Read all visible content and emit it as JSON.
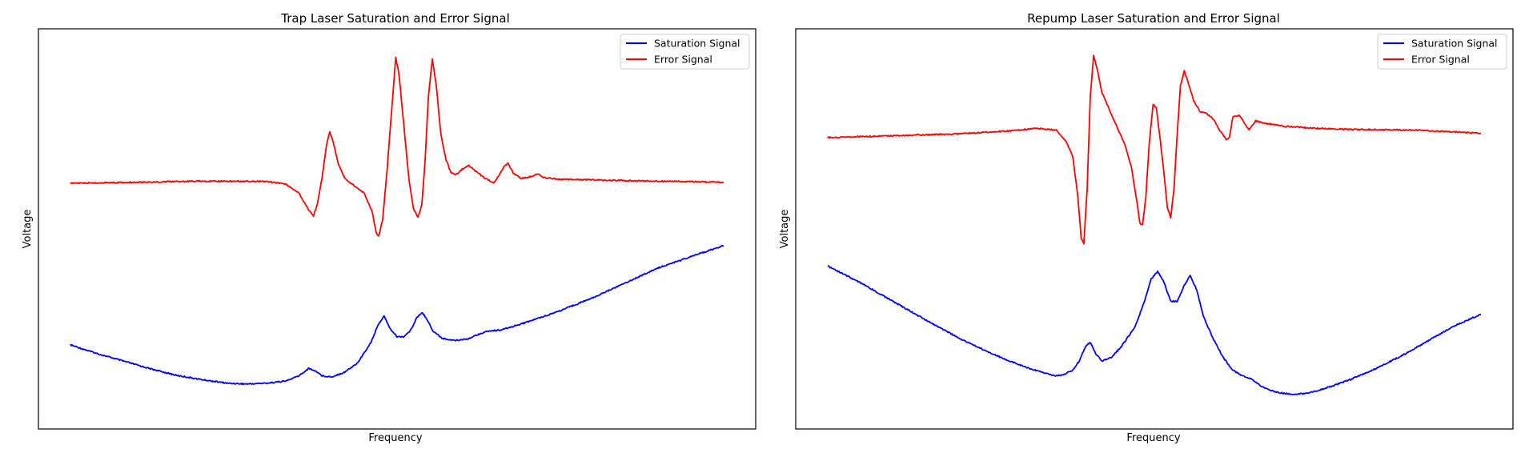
{
  "chart_data": [
    {
      "type": "line",
      "title": "Trap Laser Saturation and Error Signal",
      "xlabel": "Frequency",
      "ylabel": "Voltage",
      "xticks": "none",
      "yticks": "none",
      "grid": false,
      "legend_position": "top-right",
      "x_range": [
        0,
        100
      ],
      "y_range": [
        0,
        100
      ],
      "series": [
        {
          "name": "Saturation Signal",
          "color": "#0000ff",
          "points": [
            [
              0,
              18.3
            ],
            [
              4,
              16
            ],
            [
              8,
              14
            ],
            [
              12,
              12
            ],
            [
              16,
              10.2
            ],
            [
              20,
              9
            ],
            [
              24,
              8
            ],
            [
              27,
              7.8
            ],
            [
              30,
              8
            ],
            [
              33,
              8.6
            ],
            [
              35,
              10
            ],
            [
              36.5,
              12
            ],
            [
              37.8,
              11
            ],
            [
              38.5,
              10
            ],
            [
              40,
              9.7
            ],
            [
              42,
              11
            ],
            [
              44,
              13.5
            ],
            [
              46,
              19
            ],
            [
              47.2,
              24
            ],
            [
              48,
              26
            ],
            [
              49,
              22.5
            ],
            [
              50,
              20.5
            ],
            [
              51,
              20.5
            ],
            [
              52,
              22
            ],
            [
              53,
              25.5
            ],
            [
              53.8,
              27
            ],
            [
              54.5,
              25.5
            ],
            [
              55.5,
              22
            ],
            [
              57,
              20
            ],
            [
              59,
              19.5
            ],
            [
              61,
              20
            ],
            [
              62.5,
              21.2
            ],
            [
              64,
              22
            ],
            [
              66,
              22.3
            ],
            [
              70,
              24.5
            ],
            [
              75,
              27.5
            ],
            [
              80,
              31
            ],
            [
              85,
              35
            ],
            [
              90,
              39
            ],
            [
              95,
              42
            ],
            [
              100,
              45
            ]
          ]
        },
        {
          "name": "Error Signal",
          "color": "#ff0000",
          "points": [
            [
              0,
              61.7
            ],
            [
              10,
              62
            ],
            [
              20,
              62.3
            ],
            [
              30,
              62.2
            ],
            [
              33,
              61.5
            ],
            [
              35,
              59
            ],
            [
              36.5,
              54.5
            ],
            [
              37.2,
              53
            ],
            [
              37.8,
              56
            ],
            [
              38.5,
              63
            ],
            [
              39.2,
              72
            ],
            [
              39.7,
              75.5
            ],
            [
              40.2,
              73
            ],
            [
              41,
              67
            ],
            [
              42,
              63
            ],
            [
              43.5,
              61
            ],
            [
              45,
              59
            ],
            [
              46.2,
              54
            ],
            [
              46.8,
              48.5
            ],
            [
              47.2,
              47.5
            ],
            [
              47.8,
              52
            ],
            [
              48.5,
              66
            ],
            [
              49.2,
              82
            ],
            [
              49.8,
              95.5
            ],
            [
              50.3,
              91
            ],
            [
              51,
              78
            ],
            [
              51.8,
              63
            ],
            [
              52.5,
              55
            ],
            [
              53.2,
              52.5
            ],
            [
              53.8,
              56
            ],
            [
              54.3,
              68
            ],
            [
              54.8,
              85
            ],
            [
              55.4,
              95.2
            ],
            [
              56,
              88
            ],
            [
              56.7,
              75
            ],
            [
              57.5,
              68
            ],
            [
              58.3,
              64.5
            ],
            [
              59,
              64
            ],
            [
              60,
              65.5
            ],
            [
              61,
              66.5
            ],
            [
              62,
              65
            ],
            [
              63.5,
              63
            ],
            [
              64.8,
              61.8
            ],
            [
              65.5,
              63.5
            ],
            [
              66.5,
              66.5
            ],
            [
              67,
              67
            ],
            [
              67.8,
              64.5
            ],
            [
              69,
              63
            ],
            [
              70.5,
              63.5
            ],
            [
              71.5,
              64.3
            ],
            [
              72.5,
              63.2
            ],
            [
              75,
              62.8
            ],
            [
              80,
              62.6
            ],
            [
              90,
              62.3
            ],
            [
              100,
              62
            ]
          ]
        }
      ]
    },
    {
      "type": "line",
      "title": "Repump Laser Saturation and Error Signal",
      "xlabel": "Frequency",
      "ylabel": "Voltage",
      "xticks": "none",
      "yticks": "none",
      "grid": false,
      "legend_position": "top-right",
      "x_range": [
        0,
        100
      ],
      "y_range": [
        0,
        100
      ],
      "series": [
        {
          "name": "Saturation Signal",
          "color": "#0000ff",
          "points": [
            [
              0,
              39.5
            ],
            [
              5,
              35
            ],
            [
              10,
              30
            ],
            [
              15,
              25
            ],
            [
              20,
              20.2
            ],
            [
              25,
              16
            ],
            [
              30,
              12.5
            ],
            [
              33,
              10.8
            ],
            [
              35,
              10
            ],
            [
              36,
              10.2
            ],
            [
              37.5,
              11.5
            ],
            [
              38.5,
              14
            ],
            [
              39.5,
              18
            ],
            [
              40.2,
              19
            ],
            [
              41,
              16
            ],
            [
              42,
              14
            ],
            [
              43.5,
              15
            ],
            [
              45,
              18
            ],
            [
              47,
              23
            ],
            [
              48.5,
              30
            ],
            [
              49.5,
              36
            ],
            [
              50.5,
              38
            ],
            [
              51.5,
              35
            ],
            [
              52.5,
              30
            ],
            [
              53.5,
              30
            ],
            [
              54.5,
              34
            ],
            [
              55.5,
              37
            ],
            [
              56.5,
              33
            ],
            [
              57.5,
              26
            ],
            [
              59,
              20
            ],
            [
              60.5,
              15
            ],
            [
              62,
              11.5
            ],
            [
              63.5,
              10
            ],
            [
              65,
              9
            ],
            [
              66.5,
              7
            ],
            [
              68,
              6
            ],
            [
              69,
              5.5
            ],
            [
              71,
              5
            ],
            [
              73,
              5.2
            ],
            [
              76,
              6.5
            ],
            [
              80,
              9
            ],
            [
              84,
              12
            ],
            [
              88,
              15.5
            ],
            [
              92,
              19.5
            ],
            [
              96,
              23.5
            ],
            [
              100,
              26.5
            ]
          ]
        },
        {
          "name": "Error Signal",
          "color": "#ff0000",
          "points": [
            [
              0,
              74
            ],
            [
              10,
              74.5
            ],
            [
              20,
              75
            ],
            [
              28,
              75.8
            ],
            [
              32,
              76.5
            ],
            [
              35,
              76
            ],
            [
              36.5,
              73
            ],
            [
              37.5,
              69
            ],
            [
              38.3,
              58
            ],
            [
              38.8,
              47
            ],
            [
              39.2,
              45.5
            ],
            [
              39.7,
              60
            ],
            [
              40.2,
              85
            ],
            [
              40.7,
              96
            ],
            [
              41.3,
              92
            ],
            [
              42,
              86
            ],
            [
              43,
              82
            ],
            [
              44,
              78
            ],
            [
              45.5,
              72
            ],
            [
              46.5,
              66
            ],
            [
              47.3,
              57
            ],
            [
              47.8,
              51
            ],
            [
              48.2,
              50.5
            ],
            [
              48.7,
              58
            ],
            [
              49.2,
              72
            ],
            [
              49.8,
              83
            ],
            [
              50.3,
              82
            ],
            [
              50.8,
              75
            ],
            [
              51.5,
              64
            ],
            [
              52,
              55
            ],
            [
              52.5,
              52.5
            ],
            [
              53,
              60
            ],
            [
              53.5,
              75
            ],
            [
              54,
              88
            ],
            [
              54.6,
              92
            ],
            [
              55.3,
              88
            ],
            [
              56,
              84
            ],
            [
              57,
              81
            ],
            [
              58,
              80.5
            ],
            [
              59,
              79
            ],
            [
              60,
              76
            ],
            [
              61,
              73.5
            ],
            [
              61.5,
              74
            ],
            [
              62,
              79.5
            ],
            [
              63,
              80
            ],
            [
              64.5,
              76
            ],
            [
              65.5,
              78.5
            ],
            [
              67,
              77.8
            ],
            [
              70,
              77
            ],
            [
              75,
              76.5
            ],
            [
              80,
              76.2
            ],
            [
              90,
              76
            ],
            [
              100,
              75.2
            ]
          ]
        }
      ]
    }
  ]
}
